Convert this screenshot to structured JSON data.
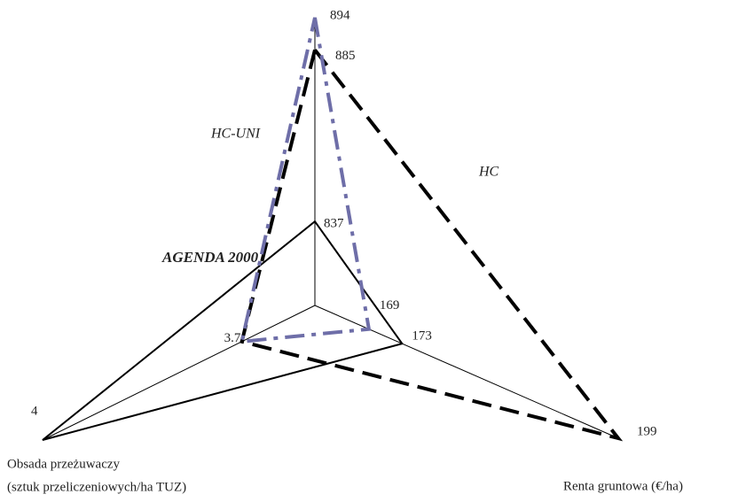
{
  "chart_data": {
    "type": "radar",
    "axes": [
      {
        "lim": [
          813.5,
          894
        ]
      },
      {
        "label_lines": [
          "Renta gruntowa (€/ha)"
        ],
        "lim": [
          162.5,
          199
        ]
      },
      {
        "label_lines": [
          "Obsada przeżuwaczy",
          "(sztuk przeliczeniowych/ha TUZ)"
        ],
        "lim": [
          3.59,
          4
        ]
      }
    ],
    "series": [
      {
        "name": "AGENDA 2000",
        "color": "#000000",
        "dash": "solid",
        "values": [
          837,
          173,
          4
        ],
        "value_labels": [
          "837",
          "173",
          "4"
        ]
      },
      {
        "name": "HC",
        "color": "#000000",
        "dash": "dashed",
        "values": [
          885,
          199,
          3.7
        ],
        "value_labels": [
          "885",
          "199",
          null
        ]
      },
      {
        "name": "HC-UNI",
        "color": "#6e6ea8",
        "dash": "dashdot",
        "values": [
          894,
          169,
          3.7
        ],
        "value_labels": [
          "894",
          "169",
          "3.7"
        ]
      }
    ]
  }
}
